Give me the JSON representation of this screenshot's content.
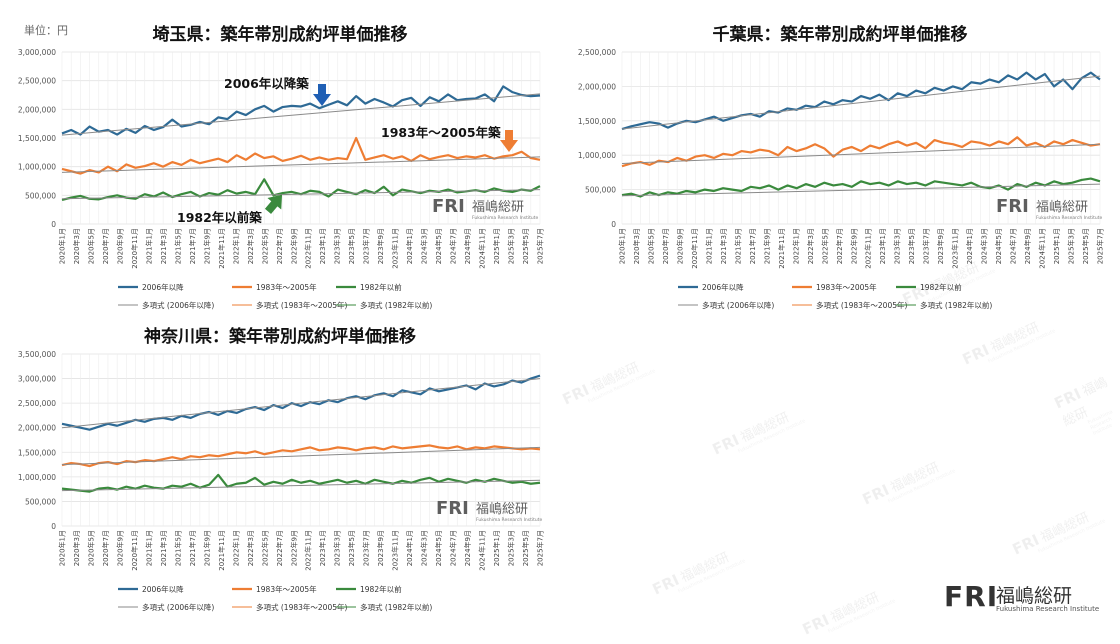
{
  "unit_label": "単位：円",
  "brand": {
    "logo": "FRI",
    "name": "福嶋総研",
    "sub": "Fukushima Research Institute"
  },
  "colors": {
    "newer": "#2e6a95",
    "mid": "#ee7d33",
    "older": "#3a8a3d",
    "trend": "#9aa0a6"
  },
  "legend": {
    "newer": "2006年以降",
    "mid": "1983年～2005年",
    "older": "1982年以前",
    "trend_newer": "多項式 (2006年以降)",
    "trend_mid": "多項式 (1983年～2005年)",
    "trend_older": "多項式 (1982年以前)"
  },
  "annotations": {
    "saitama": [
      "2006年以降築",
      "1983年～2005年築",
      "1982年以前築"
    ]
  },
  "x_labels": [
    "2020年1月",
    "2020年3月",
    "2020年5月",
    "2020年7月",
    "2020年9月",
    "2020年11月",
    "2021年1月",
    "2021年3月",
    "2021年5月",
    "2021年7月",
    "2021年9月",
    "2021年11月",
    "2022年1月",
    "2022年3月",
    "2022年5月",
    "2022年7月",
    "2022年9月",
    "2022年11月",
    "2023年1月",
    "2023年3月",
    "2023年5月",
    "2023年7月",
    "2023年9月",
    "2023年11月",
    "2024年1月",
    "2024年3月",
    "2024年5月",
    "2024年7月",
    "2024年9月",
    "2024年11月",
    "2025年1月",
    "2025年3月",
    "2025年5月",
    "2025年7月"
  ],
  "chart_data": [
    {
      "type": "line",
      "title": "埼玉県：築年帯別成約坪単価推移",
      "y_ticks": [
        "0",
        "500,000",
        "1,000,000",
        "1,500,000",
        "2,000,000",
        "2,500,000",
        "3,000,000"
      ],
      "ylim": [
        0,
        3000000
      ],
      "series": [
        {
          "name": "2006年以降",
          "key": "newer",
          "values": [
            1580000,
            1640000,
            1560000,
            1700000,
            1610000,
            1640000,
            1560000,
            1660000,
            1590000,
            1710000,
            1640000,
            1690000,
            1820000,
            1700000,
            1730000,
            1780000,
            1740000,
            1860000,
            1830000,
            1960000,
            1900000,
            2000000,
            2060000,
            1960000,
            2040000,
            2060000,
            2050000,
            2100000,
            2020000,
            2080000,
            2140000,
            2070000,
            2230000,
            2100000,
            2180000,
            2120000,
            2050000,
            2160000,
            2200000,
            2060000,
            2210000,
            2140000,
            2260000,
            2160000,
            2180000,
            2190000,
            2260000,
            2140000,
            2400000,
            2300000,
            2250000,
            2230000,
            2240000
          ]
        },
        {
          "name": "1983年～2005年",
          "key": "mid",
          "values": [
            960000,
            920000,
            880000,
            940000,
            900000,
            1000000,
            920000,
            1040000,
            980000,
            1010000,
            1060000,
            1000000,
            1080000,
            1030000,
            1120000,
            1060000,
            1100000,
            1140000,
            1080000,
            1200000,
            1120000,
            1230000,
            1150000,
            1180000,
            1100000,
            1140000,
            1190000,
            1120000,
            1160000,
            1120000,
            1150000,
            1130000,
            1500000,
            1120000,
            1160000,
            1200000,
            1140000,
            1180000,
            1100000,
            1200000,
            1130000,
            1170000,
            1200000,
            1150000,
            1180000,
            1160000,
            1200000,
            1140000,
            1180000,
            1200000,
            1260000,
            1150000,
            1120000
          ]
        },
        {
          "name": "1982年以前",
          "key": "older",
          "values": [
            420000,
            460000,
            490000,
            440000,
            430000,
            470000,
            500000,
            460000,
            440000,
            520000,
            480000,
            550000,
            470000,
            520000,
            560000,
            480000,
            540000,
            510000,
            590000,
            530000,
            560000,
            520000,
            780000,
            500000,
            540000,
            560000,
            520000,
            580000,
            560000,
            480000,
            600000,
            560000,
            520000,
            590000,
            540000,
            650000,
            500000,
            600000,
            570000,
            540000,
            580000,
            560000,
            600000,
            550000,
            570000,
            590000,
            560000,
            620000,
            580000,
            560000,
            600000,
            580000,
            660000
          ]
        },
        {
          "name": "多項式 (2006年以降)",
          "key": "trend_newer",
          "values": [
            1550000,
            2270000
          ]
        },
        {
          "name": "多項式 (1983年～2005年)",
          "key": "trend_mid",
          "values": [
            900000,
            1170000
          ]
        },
        {
          "name": "多項式 (1982年以前)",
          "key": "trend_older",
          "values": [
            440000,
            600000
          ]
        }
      ]
    },
    {
      "type": "line",
      "title": "千葉県：築年帯別成約坪単価推移",
      "y_ticks": [
        "0",
        "500,000",
        "1,000,000",
        "1,500,000",
        "2,000,000",
        "2,500,000"
      ],
      "ylim": [
        0,
        2500000
      ],
      "series": [
        {
          "name": "2006年以降",
          "key": "newer",
          "values": [
            1380000,
            1420000,
            1450000,
            1480000,
            1460000,
            1400000,
            1460000,
            1500000,
            1480000,
            1520000,
            1560000,
            1500000,
            1540000,
            1580000,
            1600000,
            1560000,
            1640000,
            1620000,
            1680000,
            1660000,
            1720000,
            1700000,
            1780000,
            1740000,
            1800000,
            1780000,
            1860000,
            1820000,
            1880000,
            1800000,
            1900000,
            1860000,
            1940000,
            1900000,
            1980000,
            1940000,
            2000000,
            1960000,
            2060000,
            2040000,
            2100000,
            2060000,
            2160000,
            2100000,
            2200000,
            2100000,
            2180000,
            2000000,
            2100000,
            1960000,
            2120000,
            2200000,
            2100000
          ]
        },
        {
          "name": "1983年～2005年",
          "key": "mid",
          "values": [
            840000,
            880000,
            900000,
            860000,
            920000,
            900000,
            960000,
            920000,
            980000,
            1000000,
            960000,
            1020000,
            1000000,
            1060000,
            1040000,
            1080000,
            1060000,
            1000000,
            1120000,
            1060000,
            1100000,
            1160000,
            1100000,
            980000,
            1080000,
            1120000,
            1060000,
            1140000,
            1100000,
            1160000,
            1200000,
            1140000,
            1180000,
            1100000,
            1220000,
            1180000,
            1160000,
            1120000,
            1200000,
            1180000,
            1140000,
            1200000,
            1160000,
            1260000,
            1140000,
            1180000,
            1120000,
            1200000,
            1160000,
            1220000,
            1180000,
            1140000,
            1160000
          ]
        },
        {
          "name": "1982年以前",
          "key": "older",
          "values": [
            420000,
            440000,
            400000,
            460000,
            420000,
            460000,
            440000,
            480000,
            460000,
            500000,
            480000,
            520000,
            500000,
            480000,
            540000,
            520000,
            560000,
            500000,
            560000,
            520000,
            580000,
            540000,
            600000,
            560000,
            580000,
            540000,
            620000,
            580000,
            600000,
            560000,
            620000,
            580000,
            600000,
            560000,
            620000,
            600000,
            580000,
            560000,
            600000,
            540000,
            520000,
            560000,
            500000,
            580000,
            540000,
            600000,
            560000,
            620000,
            580000,
            600000,
            640000,
            660000,
            620000
          ]
        },
        {
          "name": "多項式 (2006年以降)",
          "key": "trend_newer",
          "values": [
            1380000,
            2150000
          ]
        },
        {
          "name": "多項式 (1983年～2005年)",
          "key": "trend_mid",
          "values": [
            880000,
            1160000
          ]
        },
        {
          "name": "多項式 (1982年以前)",
          "key": "trend_older",
          "values": [
            410000,
            580000
          ]
        }
      ]
    },
    {
      "type": "line",
      "title": "神奈川県：築年帯別成約坪単価推移",
      "y_ticks": [
        "0",
        "500,000",
        "1,000,000",
        "1,500,000",
        "2,000,000",
        "2,500,000",
        "3,000,000",
        "3,500,000"
      ],
      "ylim": [
        0,
        3500000
      ],
      "series": [
        {
          "name": "2006年以降",
          "key": "newer",
          "values": [
            2080000,
            2040000,
            2000000,
            1960000,
            2020000,
            2080000,
            2040000,
            2100000,
            2160000,
            2120000,
            2180000,
            2200000,
            2160000,
            2240000,
            2200000,
            2280000,
            2320000,
            2260000,
            2340000,
            2300000,
            2380000,
            2420000,
            2360000,
            2460000,
            2400000,
            2500000,
            2440000,
            2520000,
            2480000,
            2560000,
            2520000,
            2600000,
            2640000,
            2580000,
            2660000,
            2700000,
            2640000,
            2760000,
            2720000,
            2680000,
            2800000,
            2740000,
            2780000,
            2820000,
            2860000,
            2780000,
            2900000,
            2840000,
            2880000,
            2960000,
            2920000,
            3000000,
            3060000
          ]
        },
        {
          "name": "1983年～2005年",
          "key": "mid",
          "values": [
            1240000,
            1280000,
            1260000,
            1220000,
            1280000,
            1300000,
            1260000,
            1320000,
            1300000,
            1340000,
            1320000,
            1360000,
            1400000,
            1360000,
            1420000,
            1400000,
            1440000,
            1420000,
            1460000,
            1500000,
            1480000,
            1520000,
            1460000,
            1500000,
            1540000,
            1520000,
            1560000,
            1600000,
            1540000,
            1560000,
            1600000,
            1580000,
            1540000,
            1580000,
            1600000,
            1560000,
            1620000,
            1580000,
            1600000,
            1620000,
            1640000,
            1600000,
            1580000,
            1620000,
            1560000,
            1600000,
            1580000,
            1620000,
            1600000,
            1580000,
            1560000,
            1580000,
            1560000
          ]
        },
        {
          "name": "1982年以前",
          "key": "older",
          "values": [
            760000,
            740000,
            720000,
            700000,
            760000,
            780000,
            740000,
            800000,
            760000,
            820000,
            780000,
            760000,
            820000,
            800000,
            860000,
            780000,
            840000,
            1040000,
            800000,
            860000,
            880000,
            980000,
            840000,
            900000,
            860000,
            940000,
            880000,
            920000,
            860000,
            900000,
            940000,
            880000,
            920000,
            860000,
            940000,
            900000,
            860000,
            920000,
            880000,
            940000,
            980000,
            900000,
            960000,
            920000,
            880000,
            940000,
            900000,
            960000,
            920000,
            880000,
            900000,
            860000,
            880000
          ]
        },
        {
          "name": "多項式 (2006年以降)",
          "key": "trend_newer",
          "values": [
            2000000,
            3000000
          ]
        },
        {
          "name": "多項式 (1983年～2005年)",
          "key": "trend_mid",
          "values": [
            1250000,
            1600000
          ]
        },
        {
          "name": "多項式 (1982年以前)",
          "key": "trend_older",
          "values": [
            720000,
            930000
          ]
        }
      ]
    }
  ]
}
